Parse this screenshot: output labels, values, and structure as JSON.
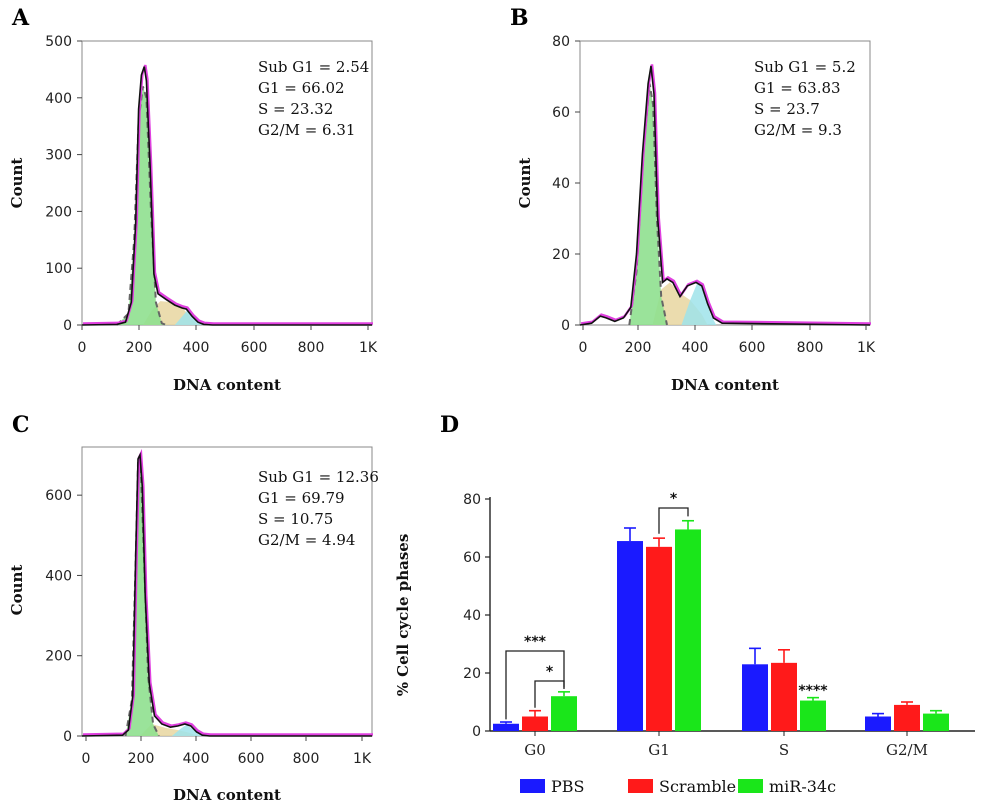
{
  "chart_data": [
    {
      "type": "area",
      "panel": "A",
      "xlabel": "DNA content",
      "ylabel": "Count",
      "xlim": [
        0,
        1000
      ],
      "ylim": [
        0,
        500
      ],
      "xticks": [
        "0",
        "200",
        "400",
        "600",
        "800",
        "1K"
      ],
      "yticks": [
        "0",
        "100",
        "200",
        "300",
        "400",
        "500"
      ],
      "stats": [
        "Sub G1 = 2.54",
        "G1 = 66.02",
        "S = 23.32",
        "G2/M = 6.31"
      ],
      "histogram": [
        [
          0,
          0
        ],
        [
          120,
          1
        ],
        [
          150,
          5
        ],
        [
          170,
          40
        ],
        [
          185,
          180
        ],
        [
          195,
          380
        ],
        [
          205,
          440
        ],
        [
          215,
          455
        ],
        [
          222,
          430
        ],
        [
          235,
          280
        ],
        [
          248,
          90
        ],
        [
          262,
          55
        ],
        [
          290,
          45
        ],
        [
          320,
          35
        ],
        [
          345,
          30
        ],
        [
          360,
          28
        ],
        [
          380,
          15
        ],
        [
          400,
          5
        ],
        [
          420,
          1
        ],
        [
          450,
          0
        ],
        [
          1000,
          0
        ]
      ],
      "g1_peak": [
        [
          120,
          0
        ],
        [
          160,
          20
        ],
        [
          180,
          150
        ],
        [
          195,
          360
        ],
        [
          210,
          420
        ],
        [
          222,
          400
        ],
        [
          238,
          200
        ],
        [
          255,
          40
        ],
        [
          275,
          3
        ],
        [
          290,
          0
        ]
      ],
      "s_phase": [
        [
          210,
          0
        ],
        [
          240,
          25
        ],
        [
          270,
          42
        ],
        [
          310,
          40
        ],
        [
          350,
          28
        ],
        [
          380,
          10
        ],
        [
          400,
          0
        ]
      ],
      "g2m_peak": [
        [
          320,
          0
        ],
        [
          345,
          15
        ],
        [
          362,
          25
        ],
        [
          380,
          15
        ],
        [
          400,
          3
        ],
        [
          420,
          0
        ]
      ]
    },
    {
      "type": "area",
      "panel": "B",
      "xlabel": "DNA content",
      "ylabel": "Count",
      "xlim": [
        0,
        1000
      ],
      "ylim": [
        0,
        80
      ],
      "xticks": [
        "0",
        "200",
        "400",
        "600",
        "800",
        "1K"
      ],
      "yticks": [
        "0",
        "20",
        "40",
        "60",
        "80"
      ],
      "stats": [
        "Sub G1 = 5.2",
        "G1 = 63.83",
        "S = 23.7",
        "G2/M = 9.3"
      ],
      "histogram": [
        [
          0,
          0
        ],
        [
          40,
          0.5
        ],
        [
          70,
          2.5
        ],
        [
          90,
          2
        ],
        [
          120,
          1
        ],
        [
          150,
          2
        ],
        [
          175,
          5
        ],
        [
          195,
          20
        ],
        [
          215,
          48
        ],
        [
          235,
          68
        ],
        [
          245,
          73
        ],
        [
          255,
          65
        ],
        [
          268,
          30
        ],
        [
          285,
          12
        ],
        [
          300,
          13
        ],
        [
          320,
          12
        ],
        [
          345,
          8
        ],
        [
          370,
          11
        ],
        [
          400,
          12
        ],
        [
          420,
          11
        ],
        [
          440,
          6
        ],
        [
          460,
          2
        ],
        [
          490,
          0.5
        ],
        [
          1000,
          0
        ]
      ],
      "g1_peak": [
        [
          170,
          0
        ],
        [
          195,
          15
        ],
        [
          220,
          50
        ],
        [
          240,
          68
        ],
        [
          252,
          62
        ],
        [
          265,
          30
        ],
        [
          280,
          8
        ],
        [
          300,
          0
        ]
      ],
      "s_phase": [
        [
          250,
          0
        ],
        [
          280,
          10
        ],
        [
          310,
          12
        ],
        [
          345,
          9
        ],
        [
          380,
          7
        ],
        [
          420,
          3
        ],
        [
          440,
          0
        ]
      ],
      "g2m_peak": [
        [
          350,
          0
        ],
        [
          380,
          7
        ],
        [
          405,
          12
        ],
        [
          425,
          10
        ],
        [
          450,
          3
        ],
        [
          470,
          0
        ]
      ]
    },
    {
      "type": "area",
      "panel": "C",
      "xlabel": "DNA content",
      "ylabel": "Count",
      "xlim": [
        0,
        1000
      ],
      "ylim": [
        0,
        720
      ],
      "xticks": [
        "0",
        "200",
        "400",
        "600",
        "800",
        "1K"
      ],
      "yticks": [
        "0",
        "200",
        "400",
        "600"
      ],
      "stats": [
        "Sub G1 = 12.36",
        "G1 = 69.79",
        "S = 10.75",
        "G2/M = 4.94"
      ],
      "histogram": [
        [
          0,
          0
        ],
        [
          140,
          2
        ],
        [
          160,
          15
        ],
        [
          175,
          100
        ],
        [
          185,
          450
        ],
        [
          193,
          690
        ],
        [
          200,
          700
        ],
        [
          208,
          620
        ],
        [
          218,
          350
        ],
        [
          232,
          130
        ],
        [
          250,
          50
        ],
        [
          275,
          30
        ],
        [
          305,
          22
        ],
        [
          330,
          25
        ],
        [
          355,
          30
        ],
        [
          375,
          25
        ],
        [
          395,
          10
        ],
        [
          415,
          2
        ],
        [
          440,
          0
        ],
        [
          1000,
          0
        ]
      ],
      "g1_peak": [
        [
          150,
          0
        ],
        [
          172,
          90
        ],
        [
          185,
          440
        ],
        [
          193,
          680
        ],
        [
          202,
          680
        ],
        [
          212,
          480
        ],
        [
          228,
          150
        ],
        [
          245,
          30
        ],
        [
          265,
          0
        ]
      ],
      "s_phase": [
        [
          200,
          0
        ],
        [
          240,
          30
        ],
        [
          290,
          20
        ],
        [
          330,
          15
        ],
        [
          370,
          8
        ],
        [
          400,
          0
        ]
      ],
      "g2m_peak": [
        [
          310,
          0
        ],
        [
          340,
          18
        ],
        [
          360,
          28
        ],
        [
          380,
          18
        ],
        [
          400,
          5
        ],
        [
          420,
          0
        ]
      ]
    },
    {
      "type": "bar",
      "panel": "D",
      "categories": [
        "G0",
        "G1",
        "S",
        "G2/M"
      ],
      "ylabel": "% Cell cycle phases",
      "ylim": [
        0,
        80
      ],
      "yticks": [
        "0",
        "20",
        "40",
        "60",
        "80"
      ],
      "series": [
        {
          "name": "PBS",
          "color": "#1a1aff",
          "values": [
            2.5,
            65.5,
            23,
            5
          ],
          "errors": [
            0.6,
            4.5,
            5.5,
            1
          ]
        },
        {
          "name": "Scramble",
          "color": "#ff1a1a",
          "values": [
            5,
            63.5,
            23.5,
            9
          ],
          "errors": [
            2,
            3,
            4.5,
            1
          ]
        },
        {
          "name": "miR-34c",
          "color": "#1ae61a",
          "values": [
            12,
            69.5,
            10.5,
            6
          ],
          "errors": [
            1.5,
            3,
            1,
            1
          ]
        }
      ],
      "significance": [
        {
          "label": "***",
          "from": "PBS",
          "to": "miR-34c",
          "category": "G0"
        },
        {
          "label": "*",
          "from": "Scramble",
          "to": "miR-34c",
          "category": "G0"
        },
        {
          "label": "*",
          "from": "Scramble",
          "to": "miR-34c",
          "category": "G1"
        },
        {
          "label": "****",
          "series": "miR-34c",
          "category": "S"
        }
      ]
    }
  ],
  "panel_labels": [
    "A",
    "B",
    "C",
    "D"
  ],
  "colors": {
    "histogram_line": "#111111",
    "fit_line": "#e040e0",
    "g1_fill": "#8fe08f",
    "s_fill": "#e8d6a0",
    "g2m_fill": "#9fe3ea",
    "dashed_line": "#666666"
  }
}
